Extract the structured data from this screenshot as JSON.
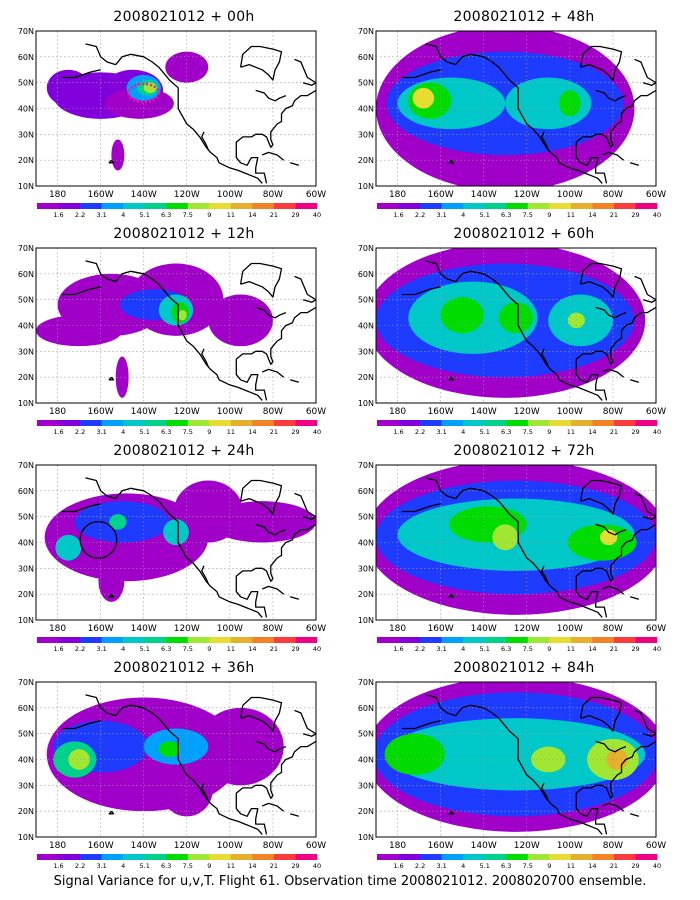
{
  "palette": [
    "#a000c8",
    "#8200dc",
    "#1e3cff",
    "#00a0ff",
    "#00c8c8",
    "#00d28c",
    "#00dc00",
    "#a0e632",
    "#e6dc32",
    "#e6af2d",
    "#f08228",
    "#fa3c3c",
    "#f00082"
  ],
  "legend_labels": [
    "1.6",
    "2.2",
    "3.1",
    "4",
    "5.1",
    "6.3",
    "7.5",
    "9",
    "11",
    "14",
    "21",
    "29",
    "40"
  ],
  "lat_labels": [
    "70N",
    "60N",
    "50N",
    "40N",
    "30N",
    "20N",
    "10N"
  ],
  "lon_labels": [
    "180",
    "160W",
    "140W",
    "120W",
    "100W",
    "80W",
    "60W"
  ],
  "panels": [
    {
      "title": "2008021012 + 00h",
      "fields": [
        {
          "lon": -175,
          "lat": 48,
          "rx": 10,
          "ry": 7,
          "level": 1
        },
        {
          "lon": -160,
          "lat": 45,
          "rx": 22,
          "ry": 9,
          "level": 1
        },
        {
          "lon": -145,
          "lat": 47,
          "rx": 14,
          "ry": 8,
          "level": 1
        },
        {
          "lon": -142,
          "lat": 42,
          "rx": 16,
          "ry": 6,
          "level": 0
        },
        {
          "lon": -152,
          "lat": 22,
          "rx": 3,
          "ry": 6,
          "level": 0
        },
        {
          "lon": -120,
          "lat": 56,
          "rx": 10,
          "ry": 6,
          "level": 0
        },
        {
          "lon": -140,
          "lat": 48,
          "rx": 8,
          "ry": 5,
          "level": 3
        },
        {
          "lon": -138,
          "lat": 48,
          "rx": 5,
          "ry": 3,
          "level": 5
        },
        {
          "lon": -137,
          "lat": 48,
          "rx": 3,
          "ry": 2,
          "level": 7
        }
      ],
      "marker": {
        "type": "dashed-ellipse",
        "lon": -140,
        "lat": 46,
        "rx": 7,
        "ry": 3.5,
        "color": "#ff1493"
      }
    },
    {
      "title": "2008021012 + 12h",
      "fields": [
        {
          "lon": -155,
          "lat": 48,
          "rx": 25,
          "ry": 12,
          "level": 0
        },
        {
          "lon": -125,
          "lat": 50,
          "rx": 22,
          "ry": 14,
          "level": 0
        },
        {
          "lon": -95,
          "lat": 42,
          "rx": 15,
          "ry": 10,
          "level": 0
        },
        {
          "lon": -170,
          "lat": 38,
          "rx": 20,
          "ry": 6,
          "level": 0
        },
        {
          "lon": -150,
          "lat": 20,
          "rx": 3,
          "ry": 8,
          "level": 0
        },
        {
          "lon": -135,
          "lat": 48,
          "rx": 16,
          "ry": 6,
          "level": 2
        },
        {
          "lon": -125,
          "lat": 46,
          "rx": 8,
          "ry": 6,
          "level": 4
        },
        {
          "lon": -123,
          "lat": 45,
          "rx": 4,
          "ry": 4,
          "level": 6
        },
        {
          "lon": -122,
          "lat": 44,
          "rx": 2,
          "ry": 2,
          "level": 7
        }
      ]
    },
    {
      "title": "2008021012 + 24h",
      "fields": [
        {
          "lon": -148,
          "lat": 42,
          "rx": 38,
          "ry": 17,
          "level": 0
        },
        {
          "lon": -110,
          "lat": 52,
          "rx": 16,
          "ry": 12,
          "level": 0
        },
        {
          "lon": -85,
          "lat": 48,
          "rx": 25,
          "ry": 8,
          "level": 0
        },
        {
          "lon": -155,
          "lat": 25,
          "rx": 6,
          "ry": 8,
          "level": 0
        },
        {
          "lon": -150,
          "lat": 48,
          "rx": 22,
          "ry": 8,
          "level": 2
        },
        {
          "lon": -125,
          "lat": 44,
          "rx": 6,
          "ry": 5,
          "level": 4
        },
        {
          "lon": -175,
          "lat": 38,
          "rx": 6,
          "ry": 5,
          "level": 4
        },
        {
          "lon": -152,
          "lat": 48,
          "rx": 4,
          "ry": 3,
          "level": 5
        }
      ],
      "marker": {
        "type": "circle",
        "lon": -161,
        "lat": 41,
        "r": 8.5,
        "color": "#000000"
      }
    },
    {
      "title": "2008021012 + 36h",
      "fields": [
        {
          "lon": -140,
          "lat": 42,
          "rx": 45,
          "ry": 22,
          "level": 0
        },
        {
          "lon": -95,
          "lat": 45,
          "rx": 20,
          "ry": 15,
          "level": 0
        },
        {
          "lon": -120,
          "lat": 28,
          "rx": 12,
          "ry": 10,
          "level": 0
        },
        {
          "lon": -160,
          "lat": 45,
          "rx": 22,
          "ry": 10,
          "level": 2
        },
        {
          "lon": -125,
          "lat": 45,
          "rx": 15,
          "ry": 7,
          "level": 3
        },
        {
          "lon": -172,
          "lat": 40,
          "rx": 10,
          "ry": 7,
          "level": 5
        },
        {
          "lon": -170,
          "lat": 40,
          "rx": 5,
          "ry": 4,
          "level": 7
        },
        {
          "lon": -128,
          "lat": 44,
          "rx": 5,
          "ry": 3,
          "level": 6
        }
      ]
    },
    {
      "title": "2008021012 + 48h",
      "fields": [
        {
          "lon": -130,
          "lat": 40,
          "rx": 60,
          "ry": 32,
          "level": 0
        },
        {
          "lon": -130,
          "lat": 42,
          "rx": 55,
          "ry": 20,
          "level": 2
        },
        {
          "lon": -155,
          "lat": 42,
          "rx": 25,
          "ry": 10,
          "level": 4
        },
        {
          "lon": -110,
          "lat": 42,
          "rx": 20,
          "ry": 10,
          "level": 4
        },
        {
          "lon": -165,
          "lat": 43,
          "rx": 10,
          "ry": 7,
          "level": 6
        },
        {
          "lon": -168,
          "lat": 44,
          "rx": 5,
          "ry": 4,
          "level": 8
        },
        {
          "lon": -100,
          "lat": 42,
          "rx": 5,
          "ry": 5,
          "level": 6
        }
      ]
    },
    {
      "title": "2008021012 + 60h",
      "fields": [
        {
          "lon": -130,
          "lat": 42,
          "rx": 65,
          "ry": 30,
          "level": 0
        },
        {
          "lon": -130,
          "lat": 42,
          "rx": 60,
          "ry": 22,
          "level": 2
        },
        {
          "lon": -145,
          "lat": 43,
          "rx": 30,
          "ry": 14,
          "level": 4
        },
        {
          "lon": -95,
          "lat": 42,
          "rx": 15,
          "ry": 10,
          "level": 4
        },
        {
          "lon": -150,
          "lat": 44,
          "rx": 10,
          "ry": 7,
          "level": 6
        },
        {
          "lon": -125,
          "lat": 43,
          "rx": 8,
          "ry": 6,
          "level": 6
        },
        {
          "lon": -97,
          "lat": 42,
          "rx": 4,
          "ry": 3,
          "level": 7
        }
      ]
    },
    {
      "title": "2008021012 + 72h",
      "fields": [
        {
          "lon": -125,
          "lat": 42,
          "rx": 70,
          "ry": 30,
          "level": 0
        },
        {
          "lon": -125,
          "lat": 42,
          "rx": 65,
          "ry": 22,
          "level": 2
        },
        {
          "lon": -125,
          "lat": 43,
          "rx": 55,
          "ry": 14,
          "level": 4
        },
        {
          "lon": -138,
          "lat": 47,
          "rx": 18,
          "ry": 7,
          "level": 6
        },
        {
          "lon": -85,
          "lat": 40,
          "rx": 16,
          "ry": 7,
          "level": 6
        },
        {
          "lon": -130,
          "lat": 42,
          "rx": 6,
          "ry": 5,
          "level": 7
        },
        {
          "lon": -82,
          "lat": 42,
          "rx": 4,
          "ry": 3,
          "level": 8
        }
      ]
    },
    {
      "title": "2008021012 + 84h",
      "fields": [
        {
          "lon": -125,
          "lat": 42,
          "rx": 70,
          "ry": 30,
          "level": 0
        },
        {
          "lon": -125,
          "lat": 42,
          "rx": 66,
          "ry": 24,
          "level": 2
        },
        {
          "lon": -125,
          "lat": 42,
          "rx": 60,
          "ry": 14,
          "level": 4
        },
        {
          "lon": -172,
          "lat": 42,
          "rx": 14,
          "ry": 8,
          "level": 6
        },
        {
          "lon": -80,
          "lat": 40,
          "rx": 12,
          "ry": 8,
          "level": 7
        },
        {
          "lon": -110,
          "lat": 40,
          "rx": 8,
          "ry": 5,
          "level": 7
        },
        {
          "lon": -78,
          "lat": 40,
          "rx": 5,
          "ry": 4,
          "level": 9
        }
      ]
    }
  ],
  "caption": "Signal Variance for u,v,T. Flight 61. Observation time 2008021012. 2008020700 ensemble."
}
